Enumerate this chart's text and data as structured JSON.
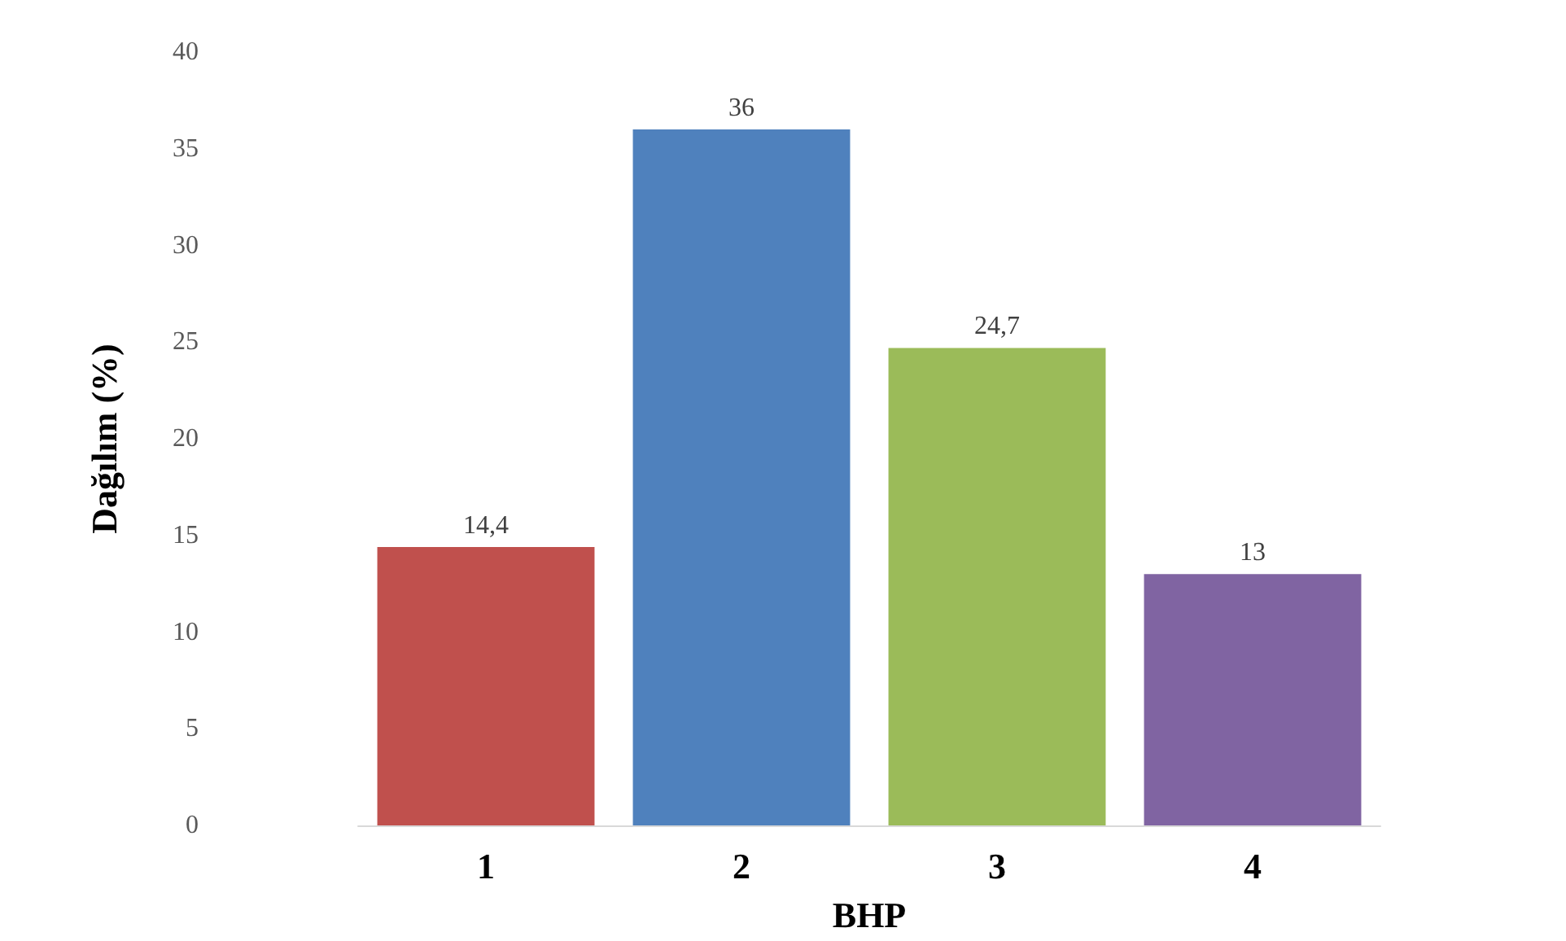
{
  "chart_data": {
    "type": "bar",
    "xlabel": "BHP",
    "ylabel": "Dağılım (%)",
    "categories": [
      "1",
      "2",
      "3",
      "4"
    ],
    "values": [
      14.4,
      36,
      24.7,
      13
    ],
    "colors": [
      "#c0504d",
      "#4f81bd",
      "#9bbb59",
      "#8064a2"
    ],
    "value_labels": [
      "14,4",
      "36",
      "24,7",
      "13"
    ],
    "ylim": [
      0,
      40
    ],
    "yticks": [
      0,
      5,
      10,
      15,
      20,
      25,
      30,
      35,
      40
    ],
    "grid": false
  }
}
